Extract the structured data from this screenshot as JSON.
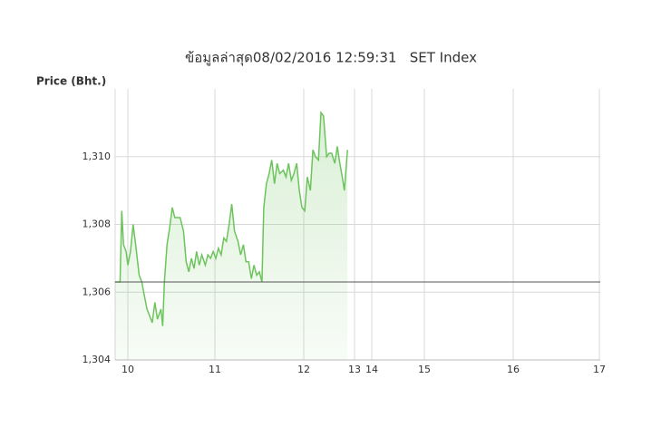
{
  "chart_data": {
    "type": "line",
    "title": "ข้อมูลล่าสุด08/02/2016 12:59:31   SET Index",
    "y_label": "Price (Bht.)",
    "x": [
      9.85,
      9.91,
      9.93,
      9.95,
      9.98,
      10.0,
      10.03,
      10.06,
      10.09,
      10.13,
      10.16,
      10.19,
      10.22,
      10.25,
      10.28,
      10.31,
      10.34,
      10.38,
      10.4,
      10.42,
      10.45,
      10.48,
      10.51,
      10.54,
      10.57,
      10.6,
      10.64,
      10.67,
      10.7,
      10.73,
      10.76,
      10.79,
      10.82,
      10.85,
      10.89,
      10.92,
      10.95,
      10.98,
      11.01,
      11.04,
      11.07,
      11.1,
      11.13,
      11.16,
      11.19,
      11.22,
      11.26,
      11.29,
      11.32,
      11.35,
      11.38,
      11.41,
      11.44,
      11.47,
      11.5,
      11.53,
      11.55,
      11.58,
      11.61,
      11.64,
      11.67,
      11.7,
      11.73,
      11.77,
      11.8,
      11.83,
      11.86,
      11.89,
      11.92,
      11.95,
      11.98,
      12.02,
      12.07,
      12.13,
      12.18,
      12.23,
      12.29,
      12.34,
      12.39,
      12.45,
      12.5,
      12.55,
      12.61,
      12.66,
      12.71,
      12.77,
      12.8,
      12.86
    ],
    "series": [
      {
        "color": "#6cc45c",
        "values": [
          1306.3,
          1306.3,
          1308.4,
          1307.4,
          1307.2,
          1306.8,
          1307.2,
          1308.0,
          1307.4,
          1306.5,
          1306.3,
          1305.9,
          1305.5,
          1305.3,
          1305.1,
          1305.7,
          1305.2,
          1305.5,
          1305.0,
          1306.3,
          1307.4,
          1307.9,
          1308.5,
          1308.2,
          1308.2,
          1308.2,
          1307.8,
          1306.9,
          1306.6,
          1307.0,
          1306.7,
          1307.2,
          1306.8,
          1307.1,
          1306.8,
          1307.1,
          1307.0,
          1307.2,
          1307.0,
          1307.3,
          1307.1,
          1307.6,
          1307.5,
          1308.0,
          1308.6,
          1307.8,
          1307.5,
          1307.1,
          1307.4,
          1306.9,
          1306.9,
          1306.4,
          1306.8,
          1306.5,
          1306.6,
          1306.3,
          1308.5,
          1309.2,
          1309.5,
          1309.9,
          1309.2,
          1309.8,
          1309.5,
          1309.6,
          1309.4,
          1309.8,
          1309.3,
          1309.5,
          1309.8,
          1309.0,
          1308.5,
          1308.4,
          1309.4,
          1309.0,
          1310.2,
          1310.0,
          1309.9,
          1311.3,
          1311.2,
          1310.0,
          1310.1,
          1310.1,
          1309.8,
          1310.3,
          1309.8,
          1309.3,
          1309.0,
          1310.2
        ]
      }
    ],
    "reference_line": 1306.3,
    "reference_color": "#555555",
    "xlim": [
      9.85,
      17
    ],
    "xticks": [
      10,
      11,
      12,
      13,
      14,
      15,
      16,
      17
    ],
    "ylim": [
      1304,
      1312
    ],
    "yticks": [
      {
        "value": 1304,
        "label": "1,304"
      },
      {
        "value": 1306,
        "label": "1,306"
      },
      {
        "value": 1308,
        "label": "1,308"
      },
      {
        "value": 1310,
        "label": "1,310"
      }
    ],
    "grid": true
  }
}
